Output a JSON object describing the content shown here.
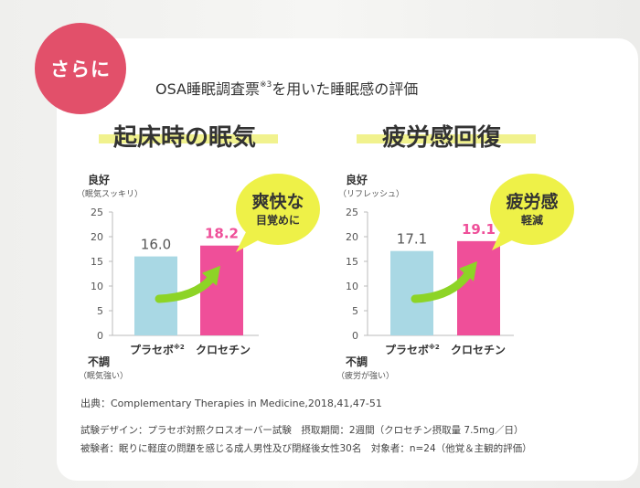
{
  "badge": {
    "label": "さらに"
  },
  "subtitle": {
    "text_before": "OSA睡眠調査票",
    "ref_mark": "※3",
    "text_after": "を用いた睡眠感の評価"
  },
  "colors": {
    "placebo": "#a9d8e4",
    "crocetin": "#ef4f99",
    "badge": "#e2506a",
    "bubble": "#eef148",
    "highlight": "#f1f28e",
    "arrow": "#8dd426"
  },
  "source": "出典：Complementary Therapies in Medicine,2018,41,47-51",
  "notes": [
    "試験デザイン：プラセボ対照クロスオーバー試験　摂取期間：2週間（クロセチン摂取量 7.5mg／日）",
    "被験者：眠りに軽度の問題を感じる成人男性及び閉経後女性30名　対象者：n=24（他覚＆主観的評価）"
  ],
  "chart_data": [
    {
      "type": "bar",
      "title": "起床時の眠気",
      "top_label": "良好",
      "top_sublabel": "（眠気スッキリ）",
      "bottom_label": "不調",
      "bottom_sublabel": "（眠気強い）",
      "ylim": [
        0,
        25
      ],
      "yticks": [
        "0",
        "5",
        "10",
        "15",
        "20",
        "25"
      ],
      "categories": [
        "プラセボ",
        "クロセチン"
      ],
      "category_ref": [
        "※2",
        ""
      ],
      "values": [
        16.0,
        18.2
      ],
      "value_labels": [
        "16.0",
        "18.2"
      ],
      "callout": {
        "line1": "爽快な",
        "line2": "目覚めに"
      }
    },
    {
      "type": "bar",
      "title": "疲労感回復",
      "top_label": "良好",
      "top_sublabel": "（リフレッシュ）",
      "bottom_label": "不調",
      "bottom_sublabel": "（疲労が強い）",
      "ylim": [
        0,
        25
      ],
      "yticks": [
        "0",
        "5",
        "10",
        "15",
        "20",
        "25"
      ],
      "categories": [
        "プラセボ",
        "クロセチン"
      ],
      "category_ref": [
        "※2",
        ""
      ],
      "values": [
        17.1,
        19.1
      ],
      "value_labels": [
        "17.1",
        "19.1"
      ],
      "callout": {
        "line1": "疲労感",
        "line2": "軽減"
      }
    }
  ]
}
